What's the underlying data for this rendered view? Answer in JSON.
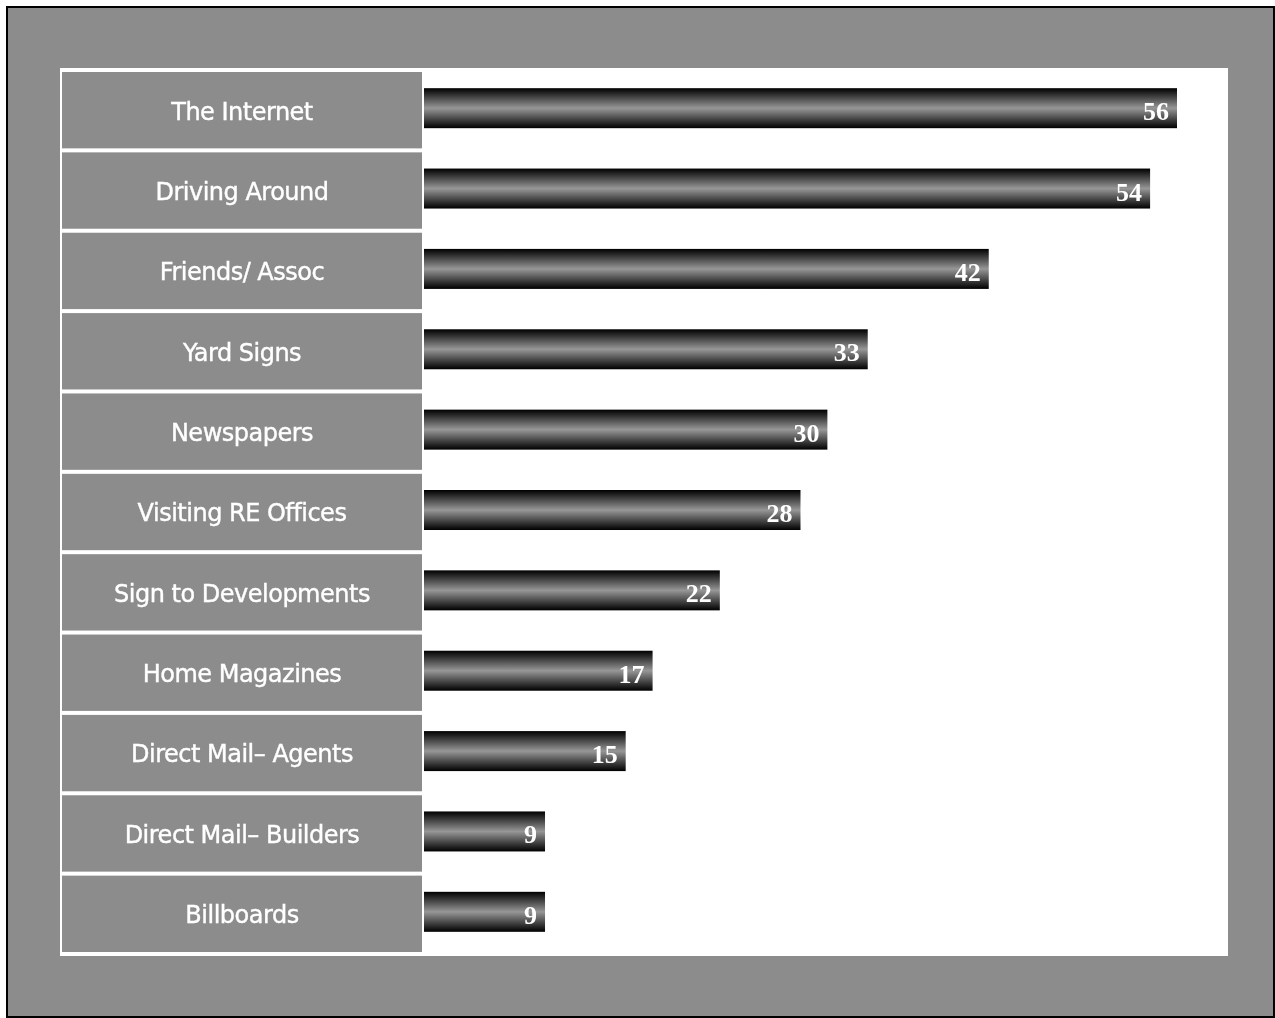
{
  "chart_data": {
    "type": "bar",
    "orientation": "horizontal",
    "categories": [
      "The Internet",
      "Driving Around",
      "Friends/ Assoc",
      "Yard Signs",
      "Newspapers",
      "Visiting RE Offices",
      "Sign to Developments",
      "Home Magazines",
      "Direct Mail– Agents",
      "Direct Mail– Builders",
      "Billboards"
    ],
    "values": [
      56,
      54,
      42,
      33,
      30,
      28,
      22,
      17,
      15,
      9,
      9
    ],
    "color": "#7a7a7a",
    "data_labels": true
  }
}
